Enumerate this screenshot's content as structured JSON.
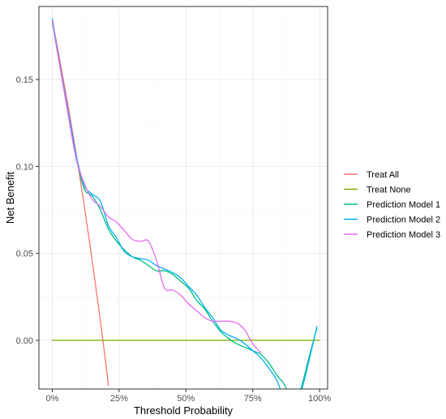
{
  "chart_data": {
    "type": "line",
    "title": "",
    "xlabel": "Threshold Probability",
    "ylabel": "Net Benefit",
    "xlim": [
      -0.05,
      1.03
    ],
    "ylim": [
      -0.028,
      0.192
    ],
    "x_ticks": [
      0,
      0.25,
      0.5,
      0.75,
      1.0
    ],
    "x_tick_labels": [
      "0%",
      "25%",
      "50%",
      "75%",
      "100%"
    ],
    "y_ticks": [
      0.0,
      0.05,
      0.1,
      0.15
    ],
    "y_tick_labels": [
      "0.00",
      "0.05",
      "0.10",
      "0.15"
    ],
    "grid": true,
    "legend_position": "right",
    "series": [
      {
        "name": "Treat All",
        "color": "#F8766D",
        "x": [
          0.0,
          0.02,
          0.04,
          0.06,
          0.08,
          0.1,
          0.12,
          0.14,
          0.16,
          0.18,
          0.2,
          0.21
        ],
        "y": [
          0.184,
          0.168,
          0.151,
          0.134,
          0.116,
          0.097,
          0.077,
          0.056,
          0.034,
          0.011,
          -0.013,
          -0.026
        ]
      },
      {
        "name": "Treat None",
        "color": "#7CAE00",
        "x": [
          0.0,
          1.0
        ],
        "y": [
          0.0,
          0.0
        ]
      },
      {
        "name": "Prediction Model 1",
        "color": "#00BF7D",
        "x": [
          0.0,
          0.03,
          0.06,
          0.09,
          0.12,
          0.15,
          0.18,
          0.21,
          0.24,
          0.27,
          0.3,
          0.33,
          0.36,
          0.39,
          0.42,
          0.45,
          0.48,
          0.51,
          0.54,
          0.57,
          0.6,
          0.63,
          0.66,
          0.69,
          0.72,
          0.75,
          0.78,
          0.81,
          0.84,
          0.87,
          0.9,
          0.93,
          0.96,
          0.99
        ],
        "y": [
          0.183,
          0.156,
          0.13,
          0.105,
          0.087,
          0.083,
          0.075,
          0.064,
          0.057,
          0.052,
          0.048,
          0.046,
          0.043,
          0.04,
          0.04,
          0.038,
          0.034,
          0.03,
          0.023,
          0.018,
          0.011,
          0.005,
          0.001,
          -0.002,
          -0.004,
          -0.006,
          -0.008,
          -0.013,
          -0.02,
          -0.026,
          -0.038,
          -0.028,
          -0.01,
          0.007
        ]
      },
      {
        "name": "Prediction Model 2",
        "color": "#00B0F6",
        "x": [
          0.0,
          0.03,
          0.06,
          0.09,
          0.12,
          0.15,
          0.18,
          0.21,
          0.24,
          0.27,
          0.3,
          0.33,
          0.36,
          0.39,
          0.42,
          0.45,
          0.48,
          0.51,
          0.54,
          0.57,
          0.6,
          0.63,
          0.66,
          0.69,
          0.72,
          0.75,
          0.78,
          0.81,
          0.84,
          0.87,
          0.9,
          0.93,
          0.96,
          0.99
        ],
        "y": [
          0.185,
          0.157,
          0.131,
          0.106,
          0.089,
          0.084,
          0.08,
          0.066,
          0.059,
          0.051,
          0.048,
          0.047,
          0.046,
          0.043,
          0.041,
          0.039,
          0.036,
          0.031,
          0.026,
          0.019,
          0.013,
          0.006,
          0.003,
          0.001,
          -0.002,
          -0.006,
          -0.01,
          -0.016,
          -0.023,
          -0.035,
          -0.04,
          -0.03,
          -0.012,
          0.008
        ]
      },
      {
        "name": "Prediction Model 3",
        "color": "#E76BF3",
        "x": [
          0.0,
          0.03,
          0.06,
          0.09,
          0.12,
          0.15,
          0.18,
          0.21,
          0.24,
          0.27,
          0.3,
          0.33,
          0.36,
          0.39,
          0.42,
          0.45,
          0.48,
          0.51,
          0.54,
          0.57,
          0.6,
          0.63,
          0.66,
          0.69,
          0.72,
          0.75,
          0.78
        ],
        "y": [
          0.184,
          0.156,
          0.129,
          0.104,
          0.09,
          0.081,
          0.077,
          0.071,
          0.068,
          0.063,
          0.058,
          0.057,
          0.057,
          0.046,
          0.03,
          0.029,
          0.026,
          0.021,
          0.017,
          0.013,
          0.011,
          0.011,
          0.011,
          0.01,
          0.006,
          -0.002,
          -0.007
        ]
      }
    ]
  }
}
